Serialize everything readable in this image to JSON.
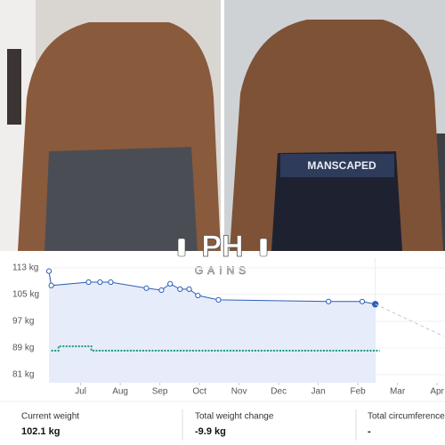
{
  "photos": {
    "waistband": "MANSCAPED"
  },
  "logo": {
    "mark": "PH",
    "text": "GAINS"
  },
  "chart_data": {
    "type": "line",
    "xlim": [
      6.2,
      16.2
    ],
    "ylim": [
      78.6,
      115.9
    ],
    "xticks": [
      {
        "value": 7,
        "label": "Jul"
      },
      {
        "value": 8,
        "label": "Aug"
      },
      {
        "value": 9,
        "label": "Sep"
      },
      {
        "value": 10,
        "label": "Oct"
      },
      {
        "value": 11,
        "label": "Nov"
      },
      {
        "value": 12,
        "label": "Dec"
      },
      {
        "value": 13,
        "label": "Jan"
      },
      {
        "value": 14,
        "label": "Feb"
      },
      {
        "value": 15,
        "label": "Mar"
      },
      {
        "value": 16,
        "label": "Apr"
      }
    ],
    "yticks": [
      {
        "value": 113,
        "label": "113 kg"
      },
      {
        "value": 105,
        "label": "105 kg"
      },
      {
        "value": 97,
        "label": "97 kg"
      },
      {
        "value": 89,
        "label": "89 kg"
      },
      {
        "value": 81,
        "label": "81 kg"
      }
    ],
    "series": [
      {
        "color": "#2d5fb8",
        "x": [
          6.2,
          6.26,
          7.2,
          7.49,
          7.76,
          8.66,
          9.04,
          9.26,
          9.51,
          9.74,
          9.96,
          10.48,
          13.26,
          14.11,
          14.44
        ],
        "values": [
          112,
          107.7,
          108.7,
          108.7,
          108.7,
          106.9,
          106.3,
          108.2,
          106.6,
          106.6,
          104.7,
          103.4,
          102.9,
          102.9,
          102.1
        ]
      },
      {
        "color": "#c4c8d0",
        "x": [
          14.44,
          16.17
        ],
        "values": [
          102.1,
          92.5
        ]
      },
      {
        "color": "#1f9a7a",
        "x": [
          6.26,
          6.44,
          6.44,
          7.27,
          7.27,
          14.55
        ],
        "values": [
          88.2,
          88.2,
          89.5,
          89.5,
          88.2,
          88.2
        ]
      }
    ]
  },
  "stats": [
    {
      "label": "Current weight",
      "value": "102.1 kg"
    },
    {
      "label": "Total weight change",
      "value": "-9.9 kg"
    },
    {
      "label": "Total circumference",
      "value": "-"
    }
  ]
}
